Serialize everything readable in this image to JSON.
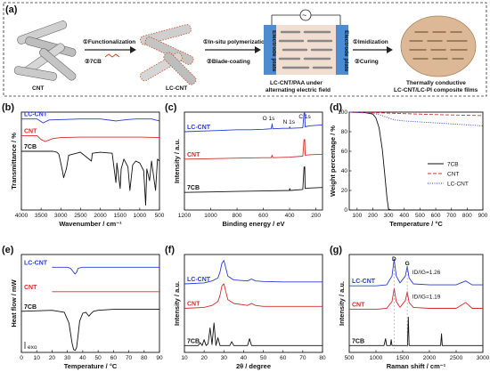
{
  "panel_a": {
    "label": "(a)",
    "cnt_label": "CNT",
    "lccnt_label": "LC-CNT",
    "step1a": "①Functionalization",
    "step1b": "②7CB",
    "step2a": "①In-situ polymerization",
    "step2b": "②Blade-coating",
    "electrode_left": "Electrode plate",
    "electrode_right": "Electrode plate",
    "paa_caption_1": "LC-CNT/PAA under",
    "paa_caption_2": "alternating electric field",
    "step3a": "①Imidization",
    "step3b": "②Curing",
    "film_caption_1": "Thermally conductive",
    "film_caption_2": "LC-CNT/LC-PI composite films",
    "ac_symbol": "~"
  },
  "colors": {
    "lccnt": "#2a3bd6",
    "cnt": "#d62a2a",
    "sevencb": "#111111",
    "electrode": "#4e8ccf",
    "film": "#dcb896"
  },
  "chart_data": [
    {
      "panel": "(b)",
      "type": "line",
      "xlabel": "Wavenumber / cm⁻¹",
      "ylabel": "Transmittance / %",
      "xlim": [
        4000,
        500
      ],
      "xticks": [
        4000,
        3500,
        3000,
        2500,
        2000,
        1500,
        1000,
        500
      ],
      "series": [
        {
          "name": "LC-CNT",
          "color": "#2a3bd6",
          "x": [
            4000,
            3600,
            3450,
            3300,
            2950,
            2500,
            2000,
            1600,
            1500,
            1300,
            1100,
            900,
            700,
            500
          ],
          "y": [
            0.93,
            0.93,
            0.89,
            0.92,
            0.925,
            0.93,
            0.93,
            0.91,
            0.915,
            0.925,
            0.93,
            0.93,
            0.93,
            0.91
          ]
        },
        {
          "name": "CNT",
          "color": "#d62a2a",
          "x": [
            4000,
            3600,
            3500,
            3400,
            3200,
            3000,
            2500,
            2000,
            1500,
            1000,
            500
          ],
          "y": [
            0.76,
            0.76,
            0.72,
            0.7,
            0.73,
            0.74,
            0.745,
            0.745,
            0.745,
            0.745,
            0.74
          ]
        },
        {
          "name": "7CB",
          "color": "#111111",
          "x": [
            4000,
            3200,
            3100,
            3050,
            2960,
            2930,
            2860,
            2800,
            2500,
            2226,
            2200,
            2000,
            1700,
            1605,
            1580,
            1495,
            1470,
            1400,
            1300,
            1250,
            1180,
            1100,
            1000,
            900,
            850,
            820,
            750,
            700,
            600,
            550,
            500
          ],
          "y": [
            0.6,
            0.6,
            0.59,
            0.57,
            0.4,
            0.33,
            0.42,
            0.56,
            0.59,
            0.5,
            0.58,
            0.59,
            0.58,
            0.28,
            0.48,
            0.22,
            0.42,
            0.52,
            0.44,
            0.2,
            0.46,
            0.5,
            0.48,
            0.4,
            0.05,
            0.42,
            0.3,
            0.5,
            0.2,
            0.52,
            0.5
          ]
        }
      ]
    },
    {
      "panel": "(c)",
      "type": "line",
      "xlabel": "Binding energy / eV",
      "ylabel": "Intensity / a.u.",
      "xlim": [
        1200,
        150
      ],
      "xticks": [
        1200,
        1000,
        800,
        600,
        400,
        200
      ],
      "annotations": [
        "O 1s",
        "N 1s",
        "C 1s"
      ],
      "series": [
        {
          "name": "LC-CNT",
          "color": "#2a3bd6",
          "x": [
            1200,
            1000,
            900,
            800,
            700,
            600,
            540,
            533,
            528,
            450,
            402,
            399,
            395,
            300,
            290,
            285,
            282,
            250,
            150
          ],
          "y": [
            0.8,
            0.81,
            0.815,
            0.82,
            0.82,
            0.825,
            0.83,
            0.88,
            0.83,
            0.835,
            0.835,
            0.85,
            0.835,
            0.84,
            0.99,
            0.99,
            0.85,
            0.86,
            0.87
          ]
        },
        {
          "name": "CNT",
          "color": "#d62a2a",
          "x": [
            1200,
            1000,
            800,
            600,
            540,
            533,
            528,
            400,
            300,
            290,
            285,
            282,
            250,
            150
          ],
          "y": [
            0.52,
            0.525,
            0.53,
            0.535,
            0.535,
            0.56,
            0.535,
            0.54,
            0.55,
            0.72,
            0.72,
            0.56,
            0.565,
            0.57
          ]
        },
        {
          "name": "7CB",
          "color": "#111111",
          "x": [
            1200,
            1000,
            800,
            600,
            400,
            402,
            399,
            395,
            300,
            290,
            285,
            282,
            250,
            150
          ],
          "y": [
            0.18,
            0.185,
            0.19,
            0.195,
            0.2,
            0.2,
            0.22,
            0.2,
            0.21,
            0.44,
            0.44,
            0.22,
            0.225,
            0.23
          ]
        }
      ]
    },
    {
      "panel": "(d)",
      "type": "line",
      "xlabel": "Temperature / °C",
      "ylabel": "Weight percentage / %",
      "xlim": [
        50,
        900
      ],
      "ylim": [
        0,
        100
      ],
      "xticks": [
        100,
        200,
        300,
        400,
        500,
        600,
        700,
        800,
        900
      ],
      "yticks": [
        0,
        20,
        40,
        60,
        80,
        100
      ],
      "legend": "right",
      "series": [
        {
          "name": "7CB",
          "color": "#111111",
          "style": "solid",
          "x": [
            50,
            150,
            200,
            220,
            240,
            260,
            275,
            290,
            300,
            320,
            900
          ],
          "y": [
            100,
            99.5,
            98,
            94,
            84,
            62,
            38,
            12,
            1,
            0,
            0
          ]
        },
        {
          "name": "CNT",
          "color": "#d62a2a",
          "style": "dashed",
          "x": [
            50,
            200,
            400,
            600,
            900
          ],
          "y": [
            100,
            99.5,
            98.5,
            97.5,
            96.5
          ]
        },
        {
          "name": "LC-CNT",
          "color": "#2a3bd6",
          "style": "dotted",
          "x": [
            50,
            200,
            250,
            300,
            340,
            400,
            600,
            900
          ],
          "y": [
            100,
            99,
            97,
            94,
            92,
            91,
            89,
            86
          ]
        }
      ]
    },
    {
      "panel": "(e)",
      "type": "line",
      "xlabel": "Temperature / °C",
      "ylabel": "Heat flow / mW",
      "xlim": [
        0,
        90
      ],
      "xticks": [
        0,
        10,
        20,
        30,
        40,
        50,
        60,
        70,
        80,
        90
      ],
      "annotations": [
        "exo"
      ],
      "series": [
        {
          "name": "LC-CNT",
          "color": "#2a3bd6",
          "x": [
            20,
            30,
            32,
            34,
            35,
            36,
            37,
            40,
            45,
            60,
            90
          ],
          "y": [
            0.87,
            0.87,
            0.86,
            0.82,
            0.8,
            0.82,
            0.86,
            0.87,
            0.87,
            0.87,
            0.87
          ]
        },
        {
          "name": "CNT",
          "color": "#d62a2a",
          "x": [
            20,
            40,
            60,
            90
          ],
          "y": [
            0.62,
            0.62,
            0.62,
            0.62
          ]
        },
        {
          "name": "7CB",
          "color": "#111111",
          "x": [
            0,
            20,
            28,
            31,
            33,
            34,
            35,
            36,
            37,
            38,
            40,
            42,
            43,
            44,
            45,
            47,
            50,
            60,
            90
          ],
          "y": [
            0.42,
            0.43,
            0.41,
            0.3,
            0.1,
            0.03,
            0.02,
            0.05,
            0.18,
            0.32,
            0.4,
            0.41,
            0.39,
            0.37,
            0.39,
            0.42,
            0.43,
            0.44,
            0.44
          ]
        }
      ]
    },
    {
      "panel": "(f)",
      "type": "line",
      "xlabel": "2θ / degree",
      "ylabel": "Intensity / a.u.",
      "xlim": [
        10,
        80
      ],
      "xticks": [
        10,
        20,
        30,
        40,
        50,
        60,
        70,
        80
      ],
      "series": [
        {
          "name": "LC-CNT",
          "color": "#2a3bd6",
          "x": [
            10,
            20,
            24,
            27,
            28,
            29,
            30,
            31,
            32,
            35,
            42,
            44,
            46,
            50,
            60,
            70,
            80
          ],
          "y": [
            0.7,
            0.71,
            0.73,
            0.76,
            0.82,
            0.91,
            0.94,
            0.86,
            0.78,
            0.74,
            0.73,
            0.75,
            0.73,
            0.725,
            0.72,
            0.72,
            0.72
          ]
        },
        {
          "name": "CNT",
          "color": "#d62a2a",
          "x": [
            10,
            20,
            24,
            27,
            28,
            29,
            30,
            31,
            32,
            35,
            42,
            44,
            46,
            50,
            60,
            70,
            80
          ],
          "y": [
            0.45,
            0.46,
            0.48,
            0.52,
            0.58,
            0.68,
            0.7,
            0.62,
            0.54,
            0.5,
            0.48,
            0.5,
            0.48,
            0.47,
            0.47,
            0.47,
            0.47
          ]
        },
        {
          "name": "7CB",
          "color": "#111111",
          "x": [
            10,
            17,
            18,
            19,
            20,
            21,
            22,
            23,
            24,
            25,
            26,
            27,
            28,
            30,
            33,
            34,
            35,
            38,
            42,
            43,
            44,
            47,
            50,
            55,
            60,
            70,
            80
          ],
          "y": [
            0.07,
            0.07,
            0.1,
            0.07,
            0.13,
            0.07,
            0.09,
            0.25,
            0.08,
            0.3,
            0.07,
            0.15,
            0.07,
            0.07,
            0.07,
            0.11,
            0.07,
            0.07,
            0.07,
            0.14,
            0.07,
            0.07,
            0.07,
            0.07,
            0.07,
            0.07,
            0.07
          ]
        }
      ]
    },
    {
      "panel": "(g)",
      "type": "line",
      "xlabel": "Raman shift / cm⁻¹",
      "ylabel": "Intensity / a.u.",
      "xlim": [
        500,
        3000
      ],
      "xticks": [
        500,
        1000,
        1500,
        2000,
        2500,
        3000
      ],
      "annotations": [
        "D",
        "G",
        "ID/IG=1.26",
        "ID/IG=1.19"
      ],
      "series": [
        {
          "name": "LC-CNT",
          "color": "#2a3bd6",
          "x": [
            500,
            1000,
            1200,
            1300,
            1340,
            1380,
            1450,
            1550,
            1585,
            1620,
            1700,
            2000,
            2500,
            2680,
            2800,
            3000
          ],
          "y": [
            0.68,
            0.68,
            0.69,
            0.78,
            0.95,
            0.78,
            0.71,
            0.78,
            0.88,
            0.76,
            0.7,
            0.69,
            0.69,
            0.73,
            0.69,
            0.69
          ]
        },
        {
          "name": "CNT",
          "color": "#d62a2a",
          "x": [
            500,
            1000,
            1200,
            1300,
            1340,
            1380,
            1450,
            1550,
            1585,
            1620,
            1700,
            2000,
            2500,
            2680,
            2800,
            3000
          ],
          "y": [
            0.44,
            0.44,
            0.45,
            0.52,
            0.65,
            0.52,
            0.46,
            0.53,
            0.62,
            0.51,
            0.46,
            0.45,
            0.45,
            0.51,
            0.45,
            0.45
          ]
        },
        {
          "name": "7CB",
          "color": "#111111",
          "x": [
            500,
            1150,
            1180,
            1200,
            1270,
            1285,
            1300,
            1590,
            1605,
            1620,
            2210,
            2226,
            2240,
            3000
          ],
          "y": [
            0.07,
            0.07,
            0.14,
            0.07,
            0.07,
            0.13,
            0.07,
            0.07,
            0.36,
            0.07,
            0.07,
            0.19,
            0.07,
            0.07
          ]
        }
      ]
    }
  ]
}
